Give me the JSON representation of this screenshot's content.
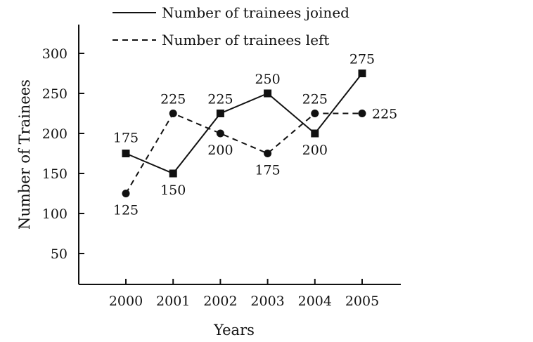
{
  "chart_data": {
    "type": "line",
    "categories": [
      "2000",
      "2001",
      "2002",
      "2003",
      "2004",
      "2005"
    ],
    "series": [
      {
        "name": "Number of trainees joined",
        "values": [
          175,
          150,
          225,
          250,
          200,
          275
        ],
        "line_style": "solid",
        "marker": "square"
      },
      {
        "name": "Number of trainees left",
        "values": [
          125,
          225,
          200,
          175,
          225,
          225
        ],
        "line_style": "dashed",
        "marker": "circle"
      }
    ],
    "xlabel": "Years",
    "ylabel": "Number of Trainees",
    "ylim": [
      0,
      300
    ],
    "yticks": [
      50,
      100,
      150,
      200,
      250,
      300
    ],
    "grid": false,
    "legend_position": "top"
  }
}
